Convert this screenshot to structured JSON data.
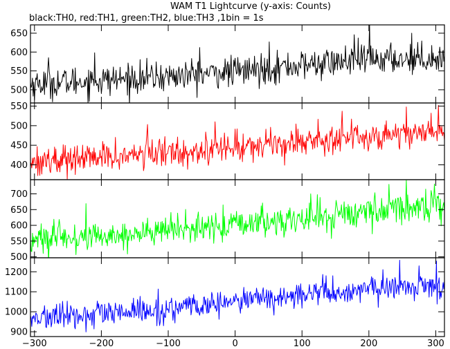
{
  "chart_data": {
    "type": "line",
    "title": "WAM T1 Lightcurve (y-axis: Counts)",
    "subtitle": "black:TH0, red:TH1, green:TH2, blue:TH3 ,1bin = 1s",
    "xlabel": "",
    "ylabel": "",
    "grid": false,
    "legend": "none",
    "xlim": [
      -306,
      313
    ],
    "x_ticks": [
      -300,
      -200,
      -100,
      0,
      100,
      200,
      300
    ],
    "x_tick_labels": [
      "−300",
      "−200",
      "−100",
      "0",
      "100",
      "200",
      "300"
    ],
    "bin_seconds": 1,
    "panels": [
      {
        "id": "th0",
        "color": "#000000",
        "ylim": [
          465,
          672
        ],
        "y_ticks": [
          500,
          550,
          600,
          650
        ],
        "y_tick_labels": [
          "500",
          "550",
          "600",
          "650"
        ],
        "trend": {
          "x": [
            -306,
            -200,
            -100,
            0,
            100,
            200,
            313
          ],
          "y": [
            515,
            525,
            535,
            548,
            565,
            580,
            585
          ]
        },
        "noise_sd": 20,
        "peaks": [
          [
            -279,
            585
          ],
          [
            -210,
            598
          ],
          [
            -53,
            612
          ],
          [
            51,
            627
          ],
          [
            178,
            646
          ],
          [
            201,
            675
          ],
          [
            264,
            650
          ]
        ]
      },
      {
        "id": "th1",
        "color": "#ff0000",
        "ylim": [
          362,
          558
        ],
        "y_ticks": [
          400,
          450,
          500,
          550
        ],
        "y_tick_labels": [
          "400",
          "450",
          "500",
          "550"
        ],
        "trend": {
          "x": [
            -306,
            -200,
            -100,
            0,
            100,
            200,
            313
          ],
          "y": [
            410,
            418,
            432,
            445,
            462,
            473,
            488
          ]
        },
        "noise_sd": 19,
        "peaks": [
          [
            -131,
            503
          ],
          [
            -30,
            510
          ],
          [
            160,
            537
          ],
          [
            256,
            548
          ],
          [
            304,
            552
          ]
        ]
      },
      {
        "id": "th2",
        "color": "#00ff00",
        "ylim": [
          497,
          745
        ],
        "y_ticks": [
          500,
          550,
          600,
          650,
          700
        ],
        "y_tick_labels": [
          "500",
          "550",
          "600",
          "650",
          "700"
        ],
        "trend": {
          "x": [
            -306,
            -200,
            -100,
            0,
            100,
            200,
            313
          ],
          "y": [
            553,
            565,
            583,
            600,
            620,
            645,
            668
          ]
        },
        "noise_sd": 24,
        "peaks": [
          [
            -290,
            605
          ],
          [
            -18,
            665
          ],
          [
            113,
            700
          ],
          [
            230,
            730
          ],
          [
            256,
            743
          ]
        ]
      },
      {
        "id": "th3",
        "color": "#0000ff",
        "ylim": [
          876,
          1270
        ],
        "y_ticks": [
          900,
          1000,
          1100,
          1200
        ],
        "y_tick_labels": [
          "900",
          "1000",
          "1100",
          "1200"
        ],
        "trend": {
          "x": [
            -306,
            -200,
            -100,
            0,
            100,
            200,
            313
          ],
          "y": [
            968,
            985,
            1010,
            1050,
            1085,
            1110,
            1135
          ]
        },
        "noise_sd": 32,
        "peaks": [
          [
            -118,
            1060
          ],
          [
            136,
            1180
          ],
          [
            246,
            1258
          ],
          [
            275,
            1230
          ]
        ]
      }
    ]
  }
}
